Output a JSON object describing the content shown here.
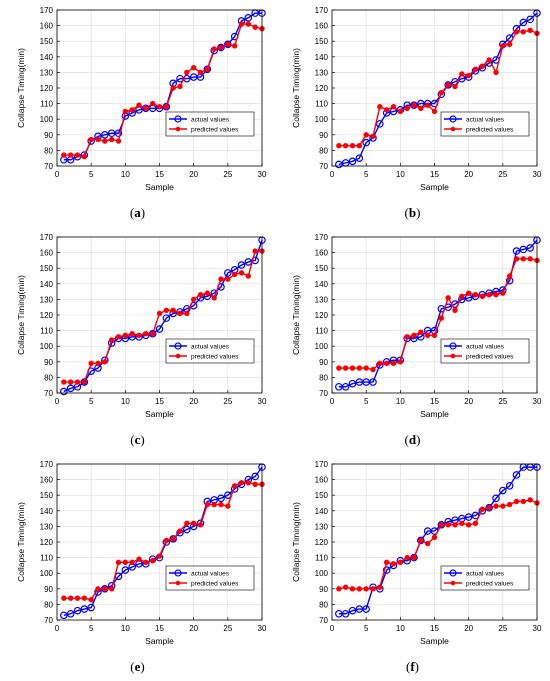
{
  "common": {
    "xlabel": "Sample",
    "ylabel": "Collapse Timing(min)",
    "legend": [
      "actual values",
      "predicted values"
    ],
    "xlim": [
      0,
      30
    ],
    "ylim": [
      70,
      170
    ],
    "xticks": [
      0,
      5,
      10,
      15,
      20,
      25,
      30
    ],
    "yticks": [
      70,
      80,
      90,
      100,
      110,
      120,
      130,
      140,
      150,
      160,
      170
    ],
    "colors": {
      "actual": "#0000ff",
      "predicted": "#ff0000"
    }
  },
  "chart_data": [
    {
      "type": "line",
      "caption_letter": "a",
      "x": [
        1,
        2,
        3,
        4,
        5,
        6,
        7,
        8,
        9,
        10,
        11,
        12,
        13,
        14,
        15,
        16,
        17,
        18,
        19,
        20,
        21,
        22,
        23,
        24,
        25,
        26,
        27,
        28,
        29,
        30
      ],
      "xlabel": "Sample",
      "ylabel": "Collapse Timing(min)",
      "xlim": [
        0,
        30
      ],
      "ylim": [
        70,
        170
      ],
      "grid": true,
      "legend_position": "lower-right",
      "series": [
        {
          "name": "actual values",
          "values": [
            74,
            74,
            76,
            77,
            86,
            89,
            90,
            91,
            91,
            102,
            104,
            106,
            107,
            107,
            107,
            108,
            123,
            126,
            126,
            127,
            127,
            132,
            144,
            146,
            148,
            153,
            163,
            165,
            168,
            168
          ]
        },
        {
          "name": "predicted values",
          "values": [
            77,
            77,
            77,
            76,
            87,
            87,
            86,
            87,
            86,
            105,
            106,
            109,
            107,
            110,
            108,
            108,
            120,
            121,
            130,
            133,
            130,
            132,
            145,
            146,
            148,
            147,
            161,
            161,
            159,
            158
          ]
        }
      ]
    },
    {
      "type": "line",
      "caption_letter": "b",
      "x": [
        1,
        2,
        3,
        4,
        5,
        6,
        7,
        8,
        9,
        10,
        11,
        12,
        13,
        14,
        15,
        16,
        17,
        18,
        19,
        20,
        21,
        22,
        23,
        24,
        25,
        26,
        27,
        28,
        29,
        30
      ],
      "xlabel": "Sample",
      "ylabel": "Collapse Timing(min)",
      "xlim": [
        0,
        30
      ],
      "ylim": [
        70,
        170
      ],
      "grid": true,
      "legend_position": "lower-right",
      "series": [
        {
          "name": "actual values",
          "values": [
            71,
            72,
            73,
            75,
            85,
            88,
            97,
            104,
            105,
            106,
            109,
            109,
            110,
            110,
            110,
            116,
            122,
            124,
            126,
            127,
            131,
            133,
            136,
            138,
            148,
            152,
            158,
            162,
            164,
            168
          ]
        },
        {
          "name": "predicted values",
          "values": [
            83,
            83,
            83,
            83,
            90,
            89,
            108,
            106,
            108,
            105,
            107,
            109,
            107,
            109,
            105,
            117,
            122,
            121,
            129,
            128,
            132,
            134,
            138,
            130,
            147,
            148,
            156,
            156,
            157,
            155
          ]
        }
      ]
    },
    {
      "type": "line",
      "caption_letter": "c",
      "x": [
        1,
        2,
        3,
        4,
        5,
        6,
        7,
        8,
        9,
        10,
        11,
        12,
        13,
        14,
        15,
        16,
        17,
        18,
        19,
        20,
        21,
        22,
        23,
        24,
        25,
        26,
        27,
        28,
        29,
        30
      ],
      "xlabel": "Sample",
      "ylabel": "Collapse Timing(min)",
      "xlim": [
        0,
        30
      ],
      "ylim": [
        70,
        170
      ],
      "grid": true,
      "legend_position": "lower-right",
      "series": [
        {
          "name": "actual values",
          "values": [
            71,
            73,
            74,
            77,
            84,
            86,
            91,
            102,
            105,
            105,
            106,
            106,
            107,
            108,
            111,
            118,
            121,
            122,
            124,
            126,
            131,
            132,
            134,
            138,
            147,
            149,
            152,
            154,
            155,
            168
          ]
        },
        {
          "name": "predicted values",
          "values": [
            77,
            77,
            77,
            77,
            89,
            89,
            90,
            104,
            106,
            107,
            108,
            107,
            108,
            108,
            121,
            123,
            123,
            121,
            121,
            130,
            133,
            134,
            131,
            143,
            143,
            146,
            147,
            145,
            161,
            161
          ]
        }
      ]
    },
    {
      "type": "line",
      "caption_letter": "d",
      "x": [
        1,
        2,
        3,
        4,
        5,
        6,
        7,
        8,
        9,
        10,
        11,
        12,
        13,
        14,
        15,
        16,
        17,
        18,
        19,
        20,
        21,
        22,
        23,
        24,
        25,
        26,
        27,
        28,
        29,
        30
      ],
      "xlabel": "Sample",
      "ylabel": "Collapse Timing(min)",
      "xlim": [
        0,
        30
      ],
      "ylim": [
        70,
        170
      ],
      "grid": true,
      "legend_position": "lower-right",
      "series": [
        {
          "name": "actual values",
          "values": [
            74,
            74,
            76,
            77,
            77,
            77,
            88,
            90,
            91,
            91,
            105,
            105,
            106,
            110,
            110,
            124,
            125,
            127,
            130,
            131,
            132,
            133,
            134,
            135,
            136,
            142,
            161,
            162,
            163,
            168
          ]
        },
        {
          "name": "predicted values",
          "values": [
            86,
            86,
            86,
            86,
            86,
            85,
            89,
            89,
            89,
            90,
            106,
            107,
            109,
            107,
            107,
            118,
            131,
            123,
            132,
            134,
            133,
            132,
            133,
            133,
            134,
            145,
            156,
            156,
            156,
            155
          ]
        }
      ]
    },
    {
      "type": "line",
      "caption_letter": "e",
      "x": [
        1,
        2,
        3,
        4,
        5,
        6,
        7,
        8,
        9,
        10,
        11,
        12,
        13,
        14,
        15,
        16,
        17,
        18,
        19,
        20,
        21,
        22,
        23,
        24,
        25,
        26,
        27,
        28,
        29,
        30
      ],
      "xlabel": "Sample",
      "ylabel": "Collapse Timing(min)",
      "xlim": [
        0,
        30
      ],
      "ylim": [
        70,
        170
      ],
      "grid": true,
      "legend_position": "lower-right",
      "series": [
        {
          "name": "actual values",
          "values": [
            73,
            74,
            76,
            77,
            78,
            88,
            90,
            92,
            98,
            102,
            104,
            106,
            106,
            109,
            110,
            120,
            122,
            126,
            128,
            130,
            132,
            146,
            147,
            148,
            150,
            154,
            157,
            160,
            162,
            168
          ]
        },
        {
          "name": "predicted values",
          "values": [
            84,
            84,
            84,
            84,
            83,
            90,
            90,
            90,
            107,
            107,
            107,
            109,
            107,
            108,
            111,
            121,
            122,
            127,
            132,
            132,
            131,
            144,
            144,
            144,
            143,
            156,
            158,
            158,
            157,
            157
          ]
        }
      ]
    },
    {
      "type": "line",
      "caption_letter": "f",
      "x": [
        1,
        2,
        3,
        4,
        5,
        6,
        7,
        8,
        9,
        10,
        11,
        12,
        13,
        14,
        15,
        16,
        17,
        18,
        19,
        20,
        21,
        22,
        23,
        24,
        25,
        26,
        27,
        28,
        29,
        30
      ],
      "xlabel": "Sample",
      "ylabel": "Collapse Timing(min)",
      "xlim": [
        0,
        30
      ],
      "ylim": [
        70,
        170
      ],
      "grid": true,
      "legend_position": "lower-right",
      "series": [
        {
          "name": "actual values",
          "values": [
            74,
            74,
            76,
            77,
            77,
            91,
            90,
            102,
            105,
            108,
            108,
            110,
            121,
            127,
            127,
            131,
            133,
            134,
            135,
            136,
            137,
            140,
            142,
            148,
            153,
            156,
            163,
            168,
            168,
            168
          ]
        },
        {
          "name": "predicted values",
          "values": [
            90,
            91,
            90,
            90,
            90,
            90,
            91,
            107,
            106,
            107,
            110,
            110,
            121,
            119,
            123,
            131,
            131,
            131,
            132,
            131,
            132,
            141,
            142,
            143,
            143,
            144,
            146,
            146,
            147,
            145
          ]
        }
      ]
    }
  ]
}
